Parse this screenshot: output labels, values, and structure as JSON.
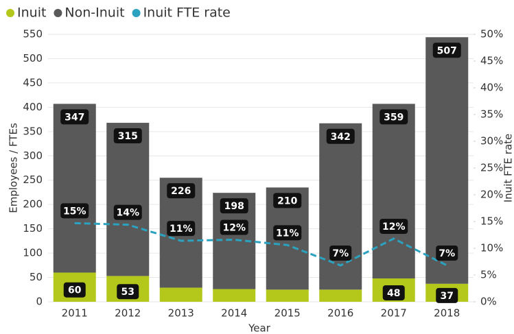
{
  "chart_data": {
    "type": "bar_line",
    "x_label": "Year",
    "y_label": "Employees / FTEs",
    "y2_label": "Inuit FTE rate",
    "categories": [
      "2011",
      "2012",
      "2013",
      "2014",
      "2015",
      "2016",
      "2017",
      "2018"
    ],
    "series": [
      {
        "name": "Inuit",
        "color": "#b3c81a",
        "kind": "bar",
        "values": [
          60,
          53,
          29,
          26,
          25,
          25,
          48,
          37
        ],
        "value_labels": [
          "60",
          "53",
          null,
          null,
          null,
          null,
          "48",
          "37"
        ]
      },
      {
        "name": "Non-Inuit",
        "color": "#595959",
        "kind": "bar",
        "values": [
          347,
          315,
          226,
          198,
          210,
          342,
          359,
          507
        ]
      },
      {
        "name": "Inuit FTE rate",
        "color": "#2ba3c0",
        "kind": "line",
        "axis": "y2",
        "values": [
          14.7,
          14.4,
          11.4,
          11.6,
          10.6,
          6.8,
          11.8,
          6.8
        ],
        "value_labels": [
          "15%",
          "14%",
          "11%",
          "12%",
          "11%",
          "7%",
          "12%",
          "7%"
        ]
      }
    ],
    "ylim": [
      0,
      550
    ],
    "yticks": [
      0,
      50,
      100,
      150,
      200,
      250,
      300,
      350,
      400,
      450,
      500,
      550
    ],
    "y2lim": [
      0,
      50
    ],
    "y2ticks": [
      {
        "value": 0,
        "label": "0%"
      },
      {
        "value": 5,
        "label": "5%"
      },
      {
        "value": 10,
        "label": "10%"
      },
      {
        "value": 15,
        "label": "15%"
      },
      {
        "value": 20,
        "label": "20%"
      },
      {
        "value": 25,
        "label": "25%"
      },
      {
        "value": 30,
        "label": "30%"
      },
      {
        "value": 35,
        "label": "35%"
      },
      {
        "value": 40,
        "label": "40%"
      },
      {
        "value": 45,
        "label": "45%"
      },
      {
        "value": 50,
        "label": "50%"
      }
    ],
    "grid": true,
    "legend": "top-left"
  }
}
